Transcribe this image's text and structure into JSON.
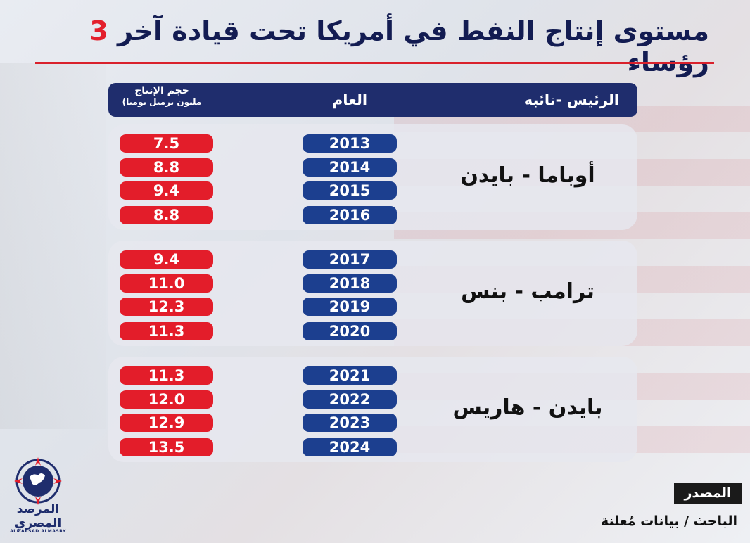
{
  "header": {
    "title_part1": "مستوى إنتاج النفط في أمريكا تحت قيادة آخر",
    "title_number": "3",
    "title_part2": "رؤساء"
  },
  "columns": {
    "president": "الرئيس -نائبه",
    "year": "العام",
    "volume_line1": "حجم الإنتاج",
    "volume_line2": "مليون برميل يوميا)"
  },
  "chart_data": {
    "type": "table",
    "columns": [
      "الرئيس -نائبه",
      "العام",
      "حجم الإنتاج مليون برميل يوميا)"
    ],
    "groups": [
      {
        "label": "أوباما - بايدن",
        "years": [
          "2013",
          "2014",
          "2015",
          "2016"
        ],
        "values": [
          "7.5",
          "8.8",
          "9.4",
          "8.8"
        ]
      },
      {
        "label": "ترامب - بنس",
        "years": [
          "2017",
          "2018",
          "2019",
          "2020"
        ],
        "values": [
          "9.4",
          "11.0",
          "12.3",
          "11.3"
        ]
      },
      {
        "label": "بايدن - هاريس",
        "years": [
          "2021",
          "2022",
          "2023",
          "2024"
        ],
        "values": [
          "11.3",
          "12.0",
          "12.9",
          "13.5"
        ]
      }
    ]
  },
  "footer": {
    "source_label": "المصدر",
    "source_text": "الباحث / بيانات مُعلنة",
    "logo_arabic": "المرصد المصري",
    "logo_english": "ALMARSAD ALMASRY"
  },
  "colors": {
    "navy": "#1f2d6d",
    "year_pill": "#1c3f8f",
    "value_pill": "#e31d2a",
    "accent_red": "#d9212c"
  }
}
